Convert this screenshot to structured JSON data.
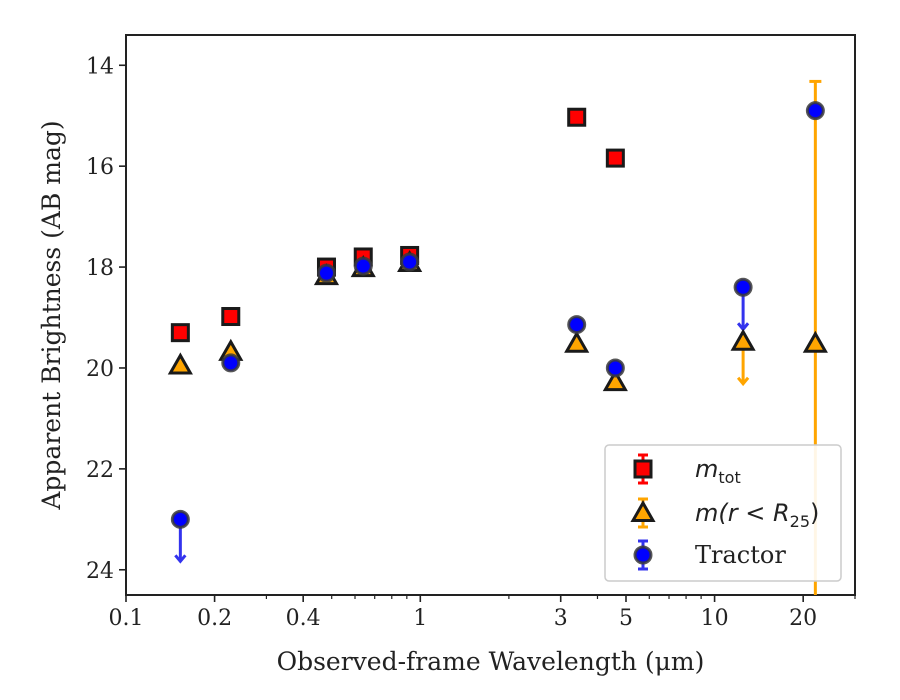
{
  "chart_data": {
    "type": "scatter",
    "xlabel": "Observed-frame Wavelength (μm)",
    "ylabel": "Apparent Brightness (AB mag)",
    "xscale": "log",
    "yaxis_inverted": true,
    "xlim": [
      0.1,
      30
    ],
    "ylim": [
      24.5,
      13.4
    ],
    "xticks": [
      {
        "value": 0.1,
        "label": "0.1"
      },
      {
        "value": 0.2,
        "label": "0.2"
      },
      {
        "value": 0.4,
        "label": "0.4"
      },
      {
        "value": 1,
        "label": "1"
      },
      {
        "value": 3,
        "label": "3"
      },
      {
        "value": 5,
        "label": "5"
      },
      {
        "value": 10,
        "label": "10"
      },
      {
        "value": 20,
        "label": "20"
      }
    ],
    "yticks": [
      {
        "value": 14,
        "label": "14"
      },
      {
        "value": 16,
        "label": "16"
      },
      {
        "value": 18,
        "label": "18"
      },
      {
        "value": 20,
        "label": "20"
      },
      {
        "value": 22,
        "label": "22"
      },
      {
        "value": 24,
        "label": "24"
      }
    ],
    "grid": false,
    "legend_position": "lower-right",
    "series": [
      {
        "name": "m_tot",
        "marker": "square",
        "color": "#ff0000",
        "errorbar_color": "#ff0000",
        "points": [
          {
            "x": 0.153,
            "y": 19.3
          },
          {
            "x": 0.227,
            "y": 18.98
          },
          {
            "x": 0.48,
            "y": 18.0
          },
          {
            "x": 0.64,
            "y": 17.8
          },
          {
            "x": 0.92,
            "y": 17.77
          },
          {
            "x": 3.4,
            "y": 15.03
          },
          {
            "x": 4.6,
            "y": 15.84
          }
        ]
      },
      {
        "name": "m(r<R25)",
        "marker": "triangle",
        "color": "#ffa500",
        "errorbar_color": "#ffa500",
        "points": [
          {
            "x": 0.153,
            "y": 19.95
          },
          {
            "x": 0.227,
            "y": 19.68
          },
          {
            "x": 0.48,
            "y": 18.18
          },
          {
            "x": 0.64,
            "y": 18.02
          },
          {
            "x": 0.92,
            "y": 17.92
          },
          {
            "x": 3.4,
            "y": 19.52
          },
          {
            "x": 4.6,
            "y": 20.28
          },
          {
            "x": 12.5,
            "y": 19.48,
            "upper_limit": true
          },
          {
            "x": 22.0,
            "y": 19.52,
            "err_low": 5.2,
            "err_high": 6.0
          }
        ]
      },
      {
        "name": "Tractor",
        "marker": "circle",
        "color": "#0000ff",
        "errorbar_color": "#3333ee",
        "points": [
          {
            "x": 0.153,
            "y": 23.0,
            "upper_limit": true
          },
          {
            "x": 0.227,
            "y": 19.9
          },
          {
            "x": 0.48,
            "y": 18.12
          },
          {
            "x": 0.64,
            "y": 17.98
          },
          {
            "x": 0.92,
            "y": 17.9
          },
          {
            "x": 3.4,
            "y": 19.14
          },
          {
            "x": 4.6,
            "y": 20.0
          },
          {
            "x": 12.5,
            "y": 18.4,
            "upper_limit": true
          },
          {
            "x": 22.0,
            "y": 14.9
          }
        ]
      }
    ],
    "legend": [
      {
        "series": "m_tot",
        "italic": "m",
        "sub": "tot",
        "rest": ""
      },
      {
        "series": "m(r<R25)",
        "italic": "m(r < R",
        "sub": "25",
        "rest": ")"
      },
      {
        "series": "Tractor",
        "text": "Tractor"
      }
    ]
  }
}
